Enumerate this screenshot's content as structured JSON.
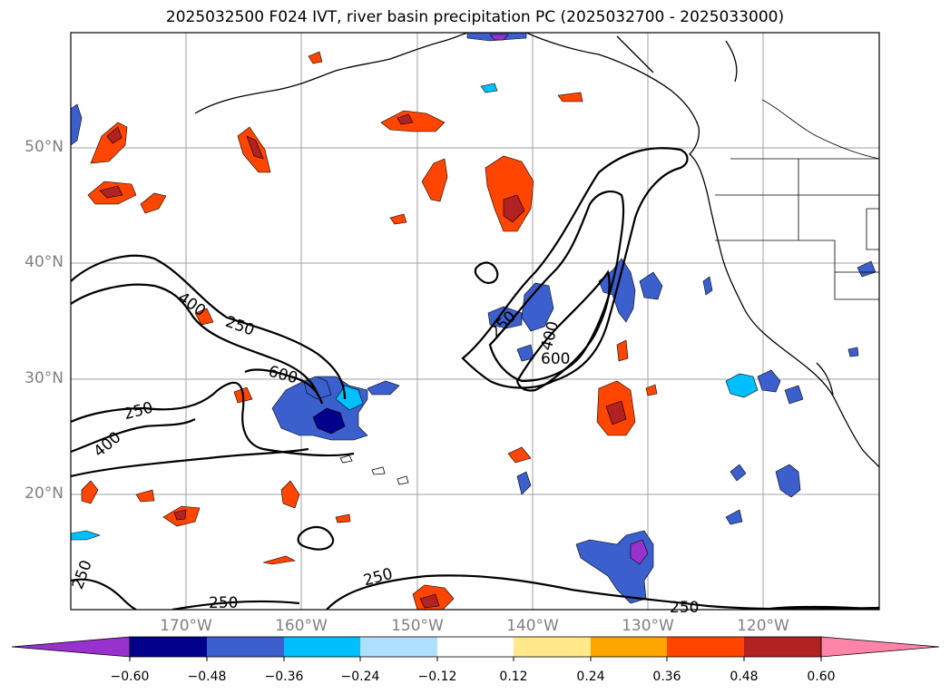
{
  "title": "2025032500 F024 IVT, river basin precipitation PC (2025032700 - 2025033000)",
  "map": {
    "lat_labels": [
      "50°N",
      "40°N",
      "30°N",
      "20°N"
    ],
    "lon_labels": [
      "170°W",
      "160°W",
      "150°W",
      "140°W",
      "130°W",
      "120°W"
    ],
    "contour_labels": [
      "400",
      "250",
      "600",
      "250",
      "400",
      "250",
      "400",
      "600",
      "250",
      "250",
      "250",
      "250"
    ],
    "colors": {
      "coast": "#000000",
      "grid": "#a0a0a0"
    }
  },
  "colorbar": {
    "tick_labels": [
      "−0.60",
      "−0.48",
      "−0.36",
      "−0.24",
      "−0.12",
      "0.12",
      "0.24",
      "0.36",
      "0.48",
      "0.60"
    ],
    "segment_colors": [
      "#9932cc",
      "#00008b",
      "#3b5fcd",
      "#00bfff",
      "#b0e0ff",
      "#ffffff",
      "#ffe98a",
      "#ffa500",
      "#ff4500",
      "#b22222",
      "#ff85a8"
    ]
  }
}
